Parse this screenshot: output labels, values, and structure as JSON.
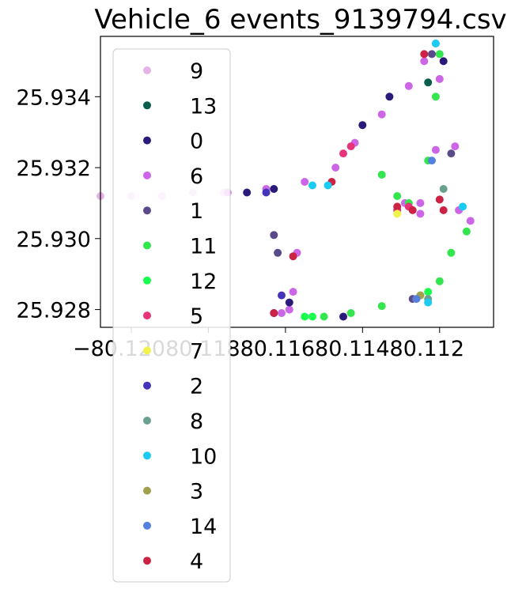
{
  "chart_data": {
    "type": "scatter",
    "title": "Vehicle_6 events_9139794.csv",
    "xlabel": "",
    "ylabel": "",
    "xlim": [
      -80.1213,
      -80.1111
    ],
    "ylim": [
      25.9275,
      25.9357
    ],
    "x_ticks": [
      {
        "value": -80.1205,
        "label": "−80.120"
      },
      {
        "value": -80.1185,
        "label": "−80.118"
      },
      {
        "value": -80.1165,
        "label": "−80.116"
      },
      {
        "value": -80.1145,
        "label": "−80.114"
      },
      {
        "value": -80.1125,
        "label": "−80.112"
      }
    ],
    "x_tick_overlay": "−80.12080.11880.11680.11480.112",
    "y_ticks": [
      {
        "value": 25.928,
        "label": "25.928"
      },
      {
        "value": 25.93,
        "label": "25.930"
      },
      {
        "value": 25.932,
        "label": "25.932"
      },
      {
        "value": 25.934,
        "label": "25.934"
      }
    ],
    "grid": false,
    "legend_position": "left (overflowing below plot)",
    "legend": [
      {
        "label": "9",
        "color": "#e6b3e6"
      },
      {
        "label": "13",
        "color": "#0b5e4e"
      },
      {
        "label": "0",
        "color": "#2a1a7a"
      },
      {
        "label": "6",
        "color": "#cc66e6"
      },
      {
        "label": "1",
        "color": "#5a4a8a"
      },
      {
        "label": "11",
        "color": "#33e64d"
      },
      {
        "label": "12",
        "color": "#1aff4d"
      },
      {
        "label": "5",
        "color": "#e6337a"
      },
      {
        "label": "7",
        "color": "#f2f24d"
      },
      {
        "label": "2",
        "color": "#4433bb"
      },
      {
        "label": "8",
        "color": "#6aa090"
      },
      {
        "label": "10",
        "color": "#1accf2"
      },
      {
        "label": "3",
        "color": "#a0a04d"
      },
      {
        "label": "14",
        "color": "#5580dd"
      },
      {
        "label": "4",
        "color": "#cc2244"
      }
    ],
    "series": [
      {
        "name": "9",
        "color": "#e6b3e6",
        "x": [
          -80.1213,
          -80.1205,
          -80.1197,
          -80.1189,
          -80.1181
        ],
        "y": [
          25.9312,
          25.9312,
          25.9312,
          25.9313,
          25.9313
        ]
      },
      {
        "name": "6",
        "color": "#cc66e6",
        "x": [
          -80.118,
          -80.117,
          -80.116,
          -80.1152,
          -80.1147,
          -80.114,
          -80.1133,
          -80.1129,
          -80.1126,
          -80.1125,
          -80.1126,
          -80.113,
          -80.1134,
          -80.113,
          -80.112,
          -80.1117,
          -80.1121,
          -80.1162,
          -80.1163,
          -80.1164,
          -80.1166
        ],
        "y": [
          25.9313,
          25.9314,
          25.9316,
          25.932,
          25.9327,
          25.9335,
          25.9343,
          25.935,
          25.9355,
          25.9345,
          25.9325,
          25.931,
          25.931,
          25.9307,
          25.9308,
          25.9305,
          25.9326,
          25.9296,
          25.9285,
          25.928,
          25.9279
        ]
      },
      {
        "name": "0",
        "color": "#2a1a7a",
        "x": [
          -80.1175,
          -80.1168,
          -80.1145,
          -80.1138,
          -80.1124,
          -80.1164,
          -80.1168,
          -80.115
        ],
        "y": [
          25.9313,
          25.9314,
          25.9332,
          25.934,
          25.935,
          25.9282,
          25.9279,
          25.9278
        ]
      },
      {
        "name": "11",
        "color": "#33e64d",
        "x": [
          -80.1125,
          -80.1126,
          -80.1128,
          -80.1133,
          -80.1136,
          -80.114,
          -80.1155,
          -80.1148,
          -80.114,
          -80.113,
          -80.1125,
          -80.1122,
          -80.1118
        ],
        "y": [
          25.9352,
          25.934,
          25.9322,
          25.931,
          25.9312,
          25.9318,
          25.9278,
          25.9279,
          25.9281,
          25.9284,
          25.9288,
          25.9296,
          25.9302
        ]
      },
      {
        "name": "12",
        "color": "#1aff4d",
        "x": [
          -80.1158,
          -80.116,
          -80.1128
        ],
        "y": [
          25.9278,
          25.9278,
          25.9285
        ]
      },
      {
        "name": "5",
        "color": "#e6337a",
        "x": [
          -80.1148,
          -80.115,
          -80.1136,
          -80.1133
        ],
        "y": [
          25.9326,
          25.9324,
          25.9308,
          25.9309
        ]
      },
      {
        "name": "4",
        "color": "#cc2244",
        "x": [
          -80.1136,
          -80.1132,
          -80.1129,
          -80.1124,
          -80.1153,
          -80.1168,
          -80.1163,
          -80.1125
        ],
        "y": [
          25.9309,
          25.9308,
          25.9352,
          25.9308,
          25.9316,
          25.9279,
          25.9295,
          25.9311
        ]
      },
      {
        "name": "1",
        "color": "#5a4a8a",
        "x": [
          -80.1127,
          -80.1122,
          -80.1168,
          -80.1167,
          -80.1132
        ],
        "y": [
          25.9352,
          25.9324,
          25.9301,
          25.9296,
          25.9283
        ]
      },
      {
        "name": "7",
        "color": "#f2f24d",
        "x": [
          -80.1136,
          -80.1131
        ],
        "y": [
          25.9307,
          25.9283
        ]
      },
      {
        "name": "2",
        "color": "#4433bb",
        "x": [
          -80.117,
          -80.1166
        ],
        "y": [
          25.9313,
          25.9284
        ]
      },
      {
        "name": "8",
        "color": "#6aa090",
        "x": [
          -80.1124,
          -80.1128
        ],
        "y": [
          25.9314,
          25.9283
        ]
      },
      {
        "name": "10",
        "color": "#1accf2",
        "x": [
          -80.1158,
          -80.1154,
          -80.1126,
          -80.1119,
          -80.1128
        ],
        "y": [
          25.9315,
          25.9315,
          25.9355,
          25.9309,
          25.9282
        ]
      },
      {
        "name": "3",
        "color": "#a0a04d",
        "x": [
          -80.113
        ],
        "y": [
          25.9284
        ]
      },
      {
        "name": "14",
        "color": "#5580dd",
        "x": [
          -80.1127,
          -80.1131
        ],
        "y": [
          25.9322,
          25.9283
        ]
      },
      {
        "name": "13",
        "color": "#0b5e4e",
        "x": [
          -80.1128
        ],
        "y": [
          25.9344
        ]
      }
    ]
  }
}
